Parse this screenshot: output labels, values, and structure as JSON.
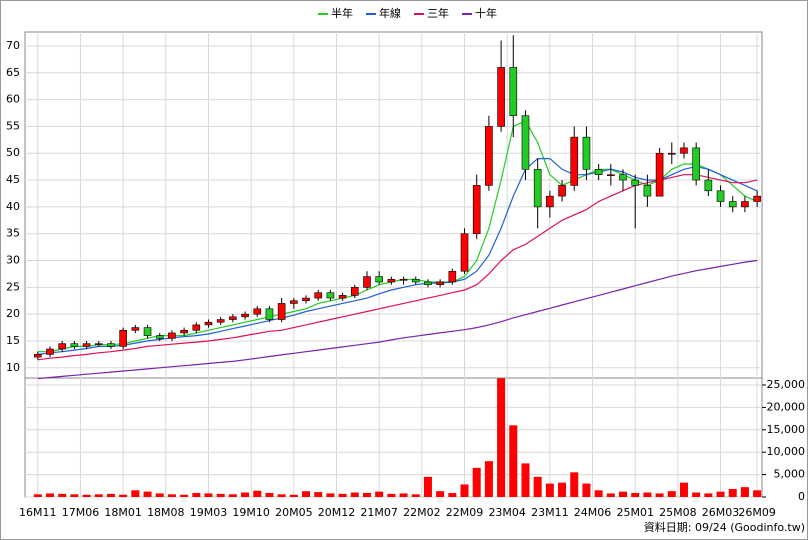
{
  "chart_data": [
    {
      "type": "candlestick",
      "x": [
        0,
        2,
        4,
        6,
        8,
        10,
        12,
        14,
        16,
        18,
        20,
        22,
        24,
        26,
        28,
        30,
        32,
        34,
        36,
        38,
        40,
        42,
        44,
        46,
        48,
        50,
        52,
        54,
        56,
        58,
        60,
        62,
        64,
        66,
        68,
        70,
        72,
        74,
        76,
        78,
        80,
        82,
        84,
        86,
        88,
        90,
        92,
        94,
        96,
        98,
        100,
        102,
        104,
        106,
        108,
        110,
        112,
        114,
        116,
        118
      ],
      "open": [
        12,
        12.5,
        13.5,
        14.5,
        14,
        14.5,
        14.5,
        14,
        17,
        17.5,
        16,
        15.5,
        16.5,
        17,
        18,
        18.5,
        19,
        19.5,
        20,
        21,
        19,
        22,
        22.5,
        23,
        24,
        23,
        23.5,
        25,
        27,
        26,
        26.5,
        26.5,
        26,
        25.5,
        26,
        28,
        35,
        44,
        55,
        66,
        57,
        47,
        40,
        42,
        44,
        53,
        47,
        46,
        46,
        45,
        44,
        42,
        50,
        50,
        51,
        45,
        43,
        41,
        40,
        41
      ],
      "high": [
        13,
        14,
        15,
        15,
        15,
        15,
        15,
        17.5,
        18,
        18,
        16.5,
        17,
        17.5,
        18.5,
        19,
        19.5,
        20,
        20.5,
        21.5,
        21.5,
        23,
        23,
        23.5,
        24.5,
        24.5,
        24,
        25.5,
        28,
        28,
        27,
        27,
        27,
        26.5,
        26.5,
        28.5,
        36,
        46,
        57,
        71,
        72,
        58,
        49,
        43,
        45,
        55,
        55,
        48,
        48,
        47,
        46,
        46,
        51,
        52,
        52,
        52,
        47,
        44,
        42,
        42,
        43
      ],
      "low": [
        11.5,
        12,
        13,
        13.5,
        13.5,
        14,
        13.5,
        13.5,
        16.5,
        15.5,
        15,
        15,
        16,
        16.5,
        17.5,
        18,
        18.5,
        19,
        19.5,
        18.5,
        18.5,
        21,
        22,
        22.5,
        22.5,
        22.5,
        23,
        24.5,
        25.5,
        25.5,
        25.5,
        25.5,
        25,
        25,
        25.5,
        27.5,
        34,
        43,
        54,
        53,
        45,
        36,
        38,
        41,
        43,
        45,
        45,
        44,
        43,
        36,
        40,
        42,
        48,
        49,
        44,
        42,
        40,
        39,
        39,
        40
      ],
      "close": [
        12.5,
        13.5,
        14.5,
        14,
        14.5,
        14.5,
        14,
        17,
        17.5,
        16,
        15.5,
        16.5,
        17,
        18,
        18.5,
        19,
        19.5,
        20,
        21,
        19,
        22,
        22.5,
        23,
        24,
        23,
        23.5,
        25,
        27,
        26,
        26.5,
        26.5,
        26,
        25.5,
        26,
        28,
        35,
        44,
        55,
        66,
        57,
        47,
        40,
        42,
        44,
        53,
        47,
        46,
        46,
        45,
        44,
        42,
        50,
        50,
        51,
        45,
        43,
        41,
        40,
        41,
        42
      ],
      "up_color": "#ff0000",
      "down_color": "#22cc22",
      "series": [
        {
          "name": "半年",
          "color": "#22cc22",
          "values": [
            13,
            13,
            13.5,
            14,
            14,
            14.3,
            14.3,
            14.5,
            15,
            15.5,
            16,
            16,
            16,
            16.5,
            17,
            17.5,
            18,
            18.5,
            19,
            19.5,
            20,
            20.5,
            21,
            22,
            22.5,
            23,
            23.5,
            24.5,
            25.5,
            26,
            26.5,
            26.5,
            26,
            26,
            26,
            27,
            30,
            36,
            45,
            55,
            56,
            52,
            46,
            44,
            45,
            46,
            47,
            47,
            46,
            45,
            44,
            45,
            47,
            48,
            48,
            47,
            46,
            44,
            42,
            41
          ]
        },
        {
          "name": "年線",
          "color": "#1f5fd6",
          "values": [
            12.5,
            12.8,
            13,
            13.3,
            13.6,
            14,
            14,
            14.2,
            14.6,
            15,
            15.3,
            15.6,
            15.8,
            16,
            16.3,
            16.8,
            17.3,
            17.8,
            18.3,
            18.8,
            19.3,
            19.8,
            20.5,
            21,
            21.5,
            22,
            22.5,
            23,
            23.8,
            24.5,
            25,
            25.5,
            25.8,
            25.8,
            26,
            26.5,
            28,
            31,
            36,
            42,
            47,
            49,
            49,
            47,
            46,
            46,
            46.5,
            47,
            46.5,
            45.5,
            45,
            45,
            46,
            47,
            47.5,
            47,
            46,
            45,
            44,
            43
          ]
        },
        {
          "name": "三年",
          "color": "#dd1155",
          "values": [
            11.5,
            11.8,
            12,
            12.3,
            12.5,
            12.8,
            13,
            13.3,
            13.6,
            14,
            14.2,
            14.4,
            14.6,
            14.8,
            15,
            15.3,
            15.6,
            16,
            16.4,
            16.8,
            17,
            17.5,
            18,
            18.5,
            19,
            19.5,
            20,
            20.5,
            21,
            21.5,
            22,
            22.5,
            23,
            23.5,
            24,
            24.5,
            25.5,
            27.5,
            30,
            32,
            33,
            34.5,
            36,
            37.5,
            38.5,
            39.5,
            41,
            42,
            43,
            44,
            44.5,
            45,
            45.5,
            46,
            46,
            45.5,
            45,
            44.5,
            44.5,
            45
          ]
        },
        {
          "name": "十年",
          "color": "#7a22aa",
          "values": [
            8,
            8.2,
            8.4,
            8.6,
            8.8,
            9,
            9.2,
            9.4,
            9.6,
            9.8,
            10,
            10.2,
            10.4,
            10.6,
            10.8,
            11,
            11.2,
            11.5,
            11.8,
            12.1,
            12.4,
            12.7,
            13,
            13.3,
            13.6,
            13.9,
            14.2,
            14.5,
            14.8,
            15.2,
            15.6,
            15.9,
            16.2,
            16.5,
            16.8,
            17.1,
            17.5,
            18,
            18.6,
            19.3,
            19.9,
            20.5,
            21.1,
            21.7,
            22.3,
            22.9,
            23.5,
            24.1,
            24.7,
            25.3,
            25.9,
            26.5,
            27.1,
            27.6,
            28.1,
            28.5,
            28.9,
            29.3,
            29.7,
            30
          ]
        }
      ],
      "xlim": [
        -2.1,
        118.8
      ],
      "xticks": [
        {
          "value": 0,
          "label": "16M11"
        },
        {
          "value": 7,
          "label": "17M06"
        },
        {
          "value": 14,
          "label": "18M01"
        },
        {
          "value": 21,
          "label": "18M08"
        },
        {
          "value": 28,
          "label": "19M03"
        },
        {
          "value": 35,
          "label": "19M10"
        },
        {
          "value": 42,
          "label": "20M05"
        },
        {
          "value": 49,
          "label": "20M12"
        },
        {
          "value": 56,
          "label": "21M07"
        },
        {
          "value": 63,
          "label": "22M02"
        },
        {
          "value": 70,
          "label": "22M09"
        },
        {
          "value": 77,
          "label": "23M04"
        },
        {
          "value": 84,
          "label": "23M11"
        },
        {
          "value": 91,
          "label": "24M06"
        },
        {
          "value": 98,
          "label": "25M01"
        },
        {
          "value": 105,
          "label": "25M08"
        },
        {
          "value": 112,
          "label": "26M03"
        },
        {
          "value": 118,
          "label": "26M09"
        }
      ],
      "ylim": [
        8.1,
        72.6
      ],
      "yticks": [
        10,
        15,
        20,
        25,
        30,
        35,
        40,
        45,
        50,
        55,
        60,
        65,
        70
      ],
      "grid": true
    },
    {
      "type": "bar",
      "x": [
        0,
        2,
        4,
        6,
        8,
        10,
        12,
        14,
        16,
        18,
        20,
        22,
        24,
        26,
        28,
        30,
        32,
        34,
        36,
        38,
        40,
        42,
        44,
        46,
        48,
        50,
        52,
        54,
        56,
        58,
        60,
        62,
        64,
        66,
        68,
        70,
        72,
        74,
        76,
        78,
        80,
        82,
        84,
        86,
        88,
        90,
        92,
        94,
        96,
        98,
        100,
        102,
        104,
        106,
        108,
        110,
        112,
        114,
        116,
        118
      ],
      "values": [
        600,
        800,
        700,
        600,
        500,
        600,
        700,
        500,
        1500,
        1200,
        800,
        600,
        500,
        900,
        800,
        700,
        600,
        1000,
        1400,
        900,
        600,
        500,
        1300,
        1100,
        800,
        700,
        1000,
        900,
        1200,
        700,
        800,
        600,
        4500,
        1300,
        900,
        2800,
        6500,
        8000,
        26500,
        16000,
        7500,
        4500,
        3000,
        3200,
        5500,
        3000,
        1500,
        800,
        1200,
        900,
        1000,
        800,
        1300,
        3200,
        1000,
        800,
        1200,
        1800,
        2200,
        1500
      ],
      "color": "#ff0000",
      "xlim": [
        -2.1,
        118.8
      ],
      "ylim": [
        0,
        26560
      ],
      "yticks": [
        0,
        {
          "value": 5000,
          "label": "5,000"
        },
        {
          "value": 10000,
          "label": "10,000"
        },
        {
          "value": 15000,
          "label": "15,000"
        },
        {
          "value": 20000,
          "label": "20,000"
        },
        {
          "value": 25000,
          "label": "25,000"
        }
      ],
      "grid": true
    }
  ],
  "footer": "資料日期: 09/24 (Goodinfo.tw)"
}
